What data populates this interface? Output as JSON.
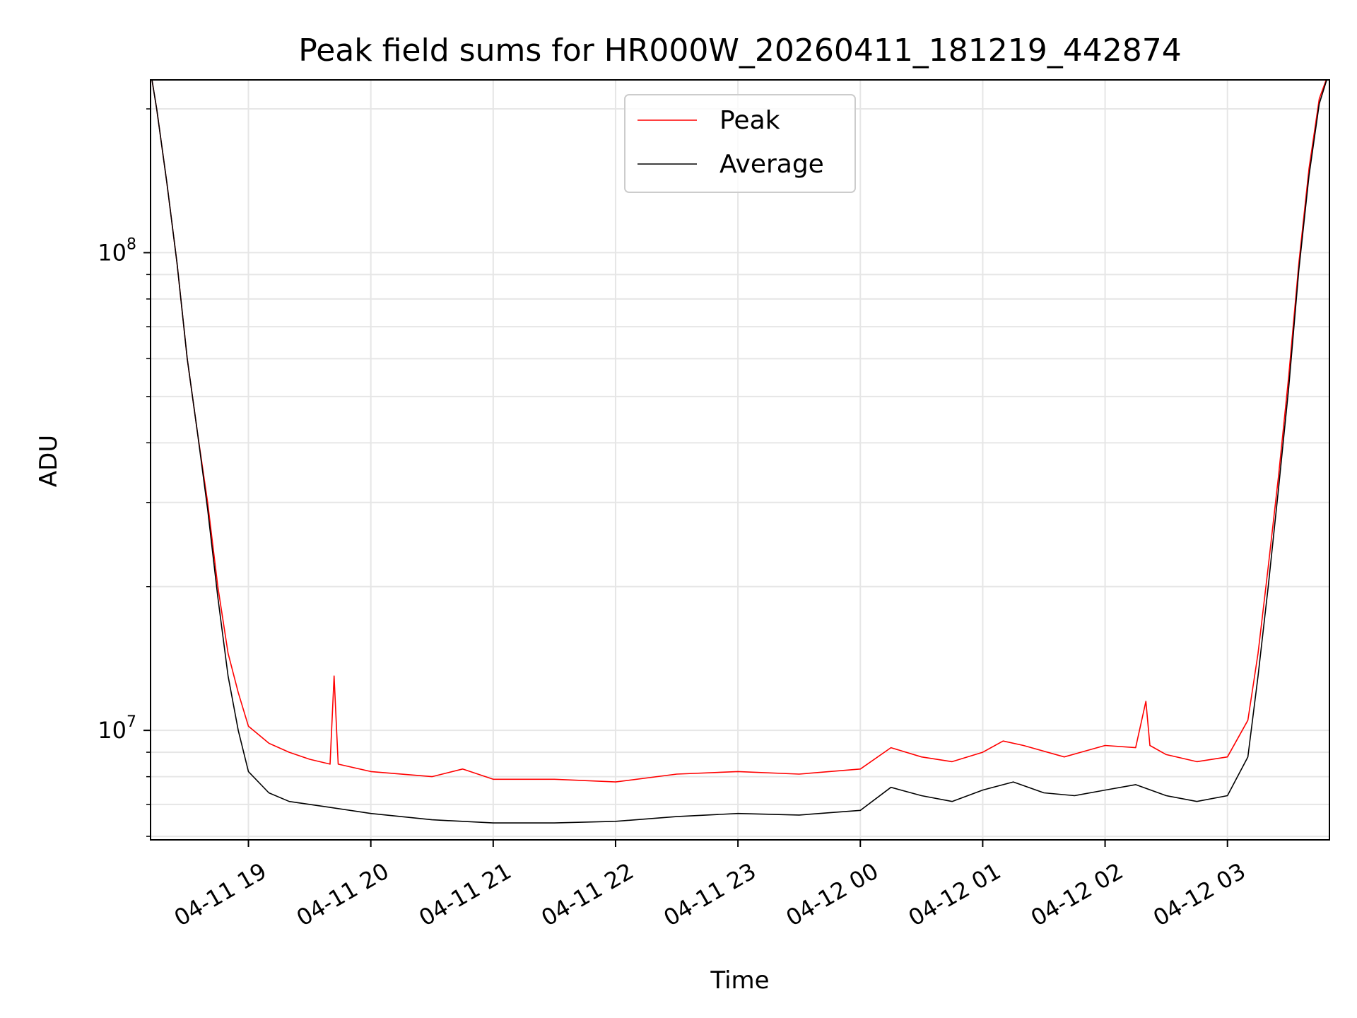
{
  "chart_data": {
    "type": "line",
    "title": "Peak field sums for HR000W_20260411_181219_442874",
    "xlabel": "Time",
    "ylabel": "ADU",
    "yscale": "log",
    "ylim": [
      5900000,
      230000000
    ],
    "xlim": [
      "2026-04-11 18:12",
      "2026-04-12 03:50"
    ],
    "grid": true,
    "legend_position": "top-center",
    "x_ticks": [
      {
        "value": "2026-04-11 19:00",
        "label": "04-11 19"
      },
      {
        "value": "2026-04-11 20:00",
        "label": "04-11 20"
      },
      {
        "value": "2026-04-11 21:00",
        "label": "04-11 21"
      },
      {
        "value": "2026-04-11 22:00",
        "label": "04-11 22"
      },
      {
        "value": "2026-04-11 23:00",
        "label": "04-11 23"
      },
      {
        "value": "2026-04-12 00:00",
        "label": "04-12 00"
      },
      {
        "value": "2026-04-12 01:00",
        "label": "04-12 01"
      },
      {
        "value": "2026-04-12 02:00",
        "label": "04-12 02"
      },
      {
        "value": "2026-04-12 03:00",
        "label": "04-12 03"
      }
    ],
    "y_ticks": [
      {
        "value": 10000000,
        "base": "10",
        "exp": "7"
      },
      {
        "value": 100000000,
        "base": "10",
        "exp": "8"
      }
    ],
    "series": [
      {
        "name": "Peak",
        "color": "#ff0000",
        "points": [
          [
            "2026-04-11 18:12",
            240000000
          ],
          [
            "2026-04-11 18:15",
            200000000
          ],
          [
            "2026-04-11 18:20",
            140000000
          ],
          [
            "2026-04-11 18:25",
            95000000
          ],
          [
            "2026-04-11 18:30",
            60000000
          ],
          [
            "2026-04-11 18:35",
            42000000
          ],
          [
            "2026-04-11 18:40",
            30000000
          ],
          [
            "2026-04-11 18:45",
            20000000
          ],
          [
            "2026-04-11 18:50",
            14500000
          ],
          [
            "2026-04-11 18:55",
            12000000
          ],
          [
            "2026-04-11 19:00",
            10200000
          ],
          [
            "2026-04-11 19:10",
            9400000
          ],
          [
            "2026-04-11 19:20",
            9000000
          ],
          [
            "2026-04-11 19:30",
            8700000
          ],
          [
            "2026-04-11 19:40",
            8500000
          ],
          [
            "2026-04-11 19:42",
            13000000
          ],
          [
            "2026-04-11 19:44",
            8500000
          ],
          [
            "2026-04-11 20:00",
            8200000
          ],
          [
            "2026-04-11 20:30",
            8000000
          ],
          [
            "2026-04-11 20:45",
            8300000
          ],
          [
            "2026-04-11 21:00",
            7900000
          ],
          [
            "2026-04-11 21:30",
            7900000
          ],
          [
            "2026-04-11 22:00",
            7800000
          ],
          [
            "2026-04-11 22:30",
            8100000
          ],
          [
            "2026-04-11 23:00",
            8200000
          ],
          [
            "2026-04-11 23:30",
            8100000
          ],
          [
            "2026-04-12 00:00",
            8300000
          ],
          [
            "2026-04-12 00:15",
            9200000
          ],
          [
            "2026-04-12 00:30",
            8800000
          ],
          [
            "2026-04-12 00:45",
            8600000
          ],
          [
            "2026-04-12 01:00",
            9000000
          ],
          [
            "2026-04-12 01:10",
            9500000
          ],
          [
            "2026-04-12 01:20",
            9300000
          ],
          [
            "2026-04-12 01:40",
            8800000
          ],
          [
            "2026-04-12 02:00",
            9300000
          ],
          [
            "2026-04-12 02:15",
            9200000
          ],
          [
            "2026-04-12 02:20",
            11500000
          ],
          [
            "2026-04-12 02:22",
            9300000
          ],
          [
            "2026-04-12 02:30",
            8900000
          ],
          [
            "2026-04-12 02:45",
            8600000
          ],
          [
            "2026-04-12 03:00",
            8800000
          ],
          [
            "2026-04-12 03:10",
            10500000
          ],
          [
            "2026-04-12 03:15",
            14500000
          ],
          [
            "2026-04-12 03:20",
            22000000
          ],
          [
            "2026-04-12 03:25",
            34000000
          ],
          [
            "2026-04-12 03:30",
            55000000
          ],
          [
            "2026-04-12 03:35",
            95000000
          ],
          [
            "2026-04-12 03:40",
            150000000
          ],
          [
            "2026-04-12 03:45",
            210000000
          ],
          [
            "2026-04-12 03:50",
            240000000
          ]
        ]
      },
      {
        "name": "Average",
        "color": "#000000",
        "points": [
          [
            "2026-04-11 18:12",
            240000000
          ],
          [
            "2026-04-11 18:15",
            200000000
          ],
          [
            "2026-04-11 18:20",
            140000000
          ],
          [
            "2026-04-11 18:25",
            95000000
          ],
          [
            "2026-04-11 18:30",
            60000000
          ],
          [
            "2026-04-11 18:35",
            42000000
          ],
          [
            "2026-04-11 18:40",
            29000000
          ],
          [
            "2026-04-11 18:45",
            19000000
          ],
          [
            "2026-04-11 18:50",
            13000000
          ],
          [
            "2026-04-11 18:55",
            10000000
          ],
          [
            "2026-04-11 19:00",
            8200000
          ],
          [
            "2026-04-11 19:10",
            7400000
          ],
          [
            "2026-04-11 19:20",
            7100000
          ],
          [
            "2026-04-11 19:40",
            6900000
          ],
          [
            "2026-04-11 20:00",
            6700000
          ],
          [
            "2026-04-11 20:30",
            6500000
          ],
          [
            "2026-04-11 21:00",
            6400000
          ],
          [
            "2026-04-11 21:30",
            6400000
          ],
          [
            "2026-04-11 22:00",
            6450000
          ],
          [
            "2026-04-11 22:30",
            6600000
          ],
          [
            "2026-04-11 23:00",
            6700000
          ],
          [
            "2026-04-11 23:30",
            6650000
          ],
          [
            "2026-04-12 00:00",
            6800000
          ],
          [
            "2026-04-12 00:15",
            7600000
          ],
          [
            "2026-04-12 00:30",
            7300000
          ],
          [
            "2026-04-12 00:45",
            7100000
          ],
          [
            "2026-04-12 01:00",
            7500000
          ],
          [
            "2026-04-12 01:15",
            7800000
          ],
          [
            "2026-04-12 01:30",
            7400000
          ],
          [
            "2026-04-12 01:45",
            7300000
          ],
          [
            "2026-04-12 02:00",
            7500000
          ],
          [
            "2026-04-12 02:15",
            7700000
          ],
          [
            "2026-04-12 02:30",
            7300000
          ],
          [
            "2026-04-12 02:45",
            7100000
          ],
          [
            "2026-04-12 03:00",
            7300000
          ],
          [
            "2026-04-12 03:10",
            8800000
          ],
          [
            "2026-04-12 03:15",
            13000000
          ],
          [
            "2026-04-12 03:20",
            20000000
          ],
          [
            "2026-04-12 03:25",
            32000000
          ],
          [
            "2026-04-12 03:30",
            52000000
          ],
          [
            "2026-04-12 03:35",
            92000000
          ],
          [
            "2026-04-12 03:40",
            145000000
          ],
          [
            "2026-04-12 03:45",
            205000000
          ],
          [
            "2026-04-12 03:50",
            240000000
          ]
        ]
      }
    ]
  }
}
